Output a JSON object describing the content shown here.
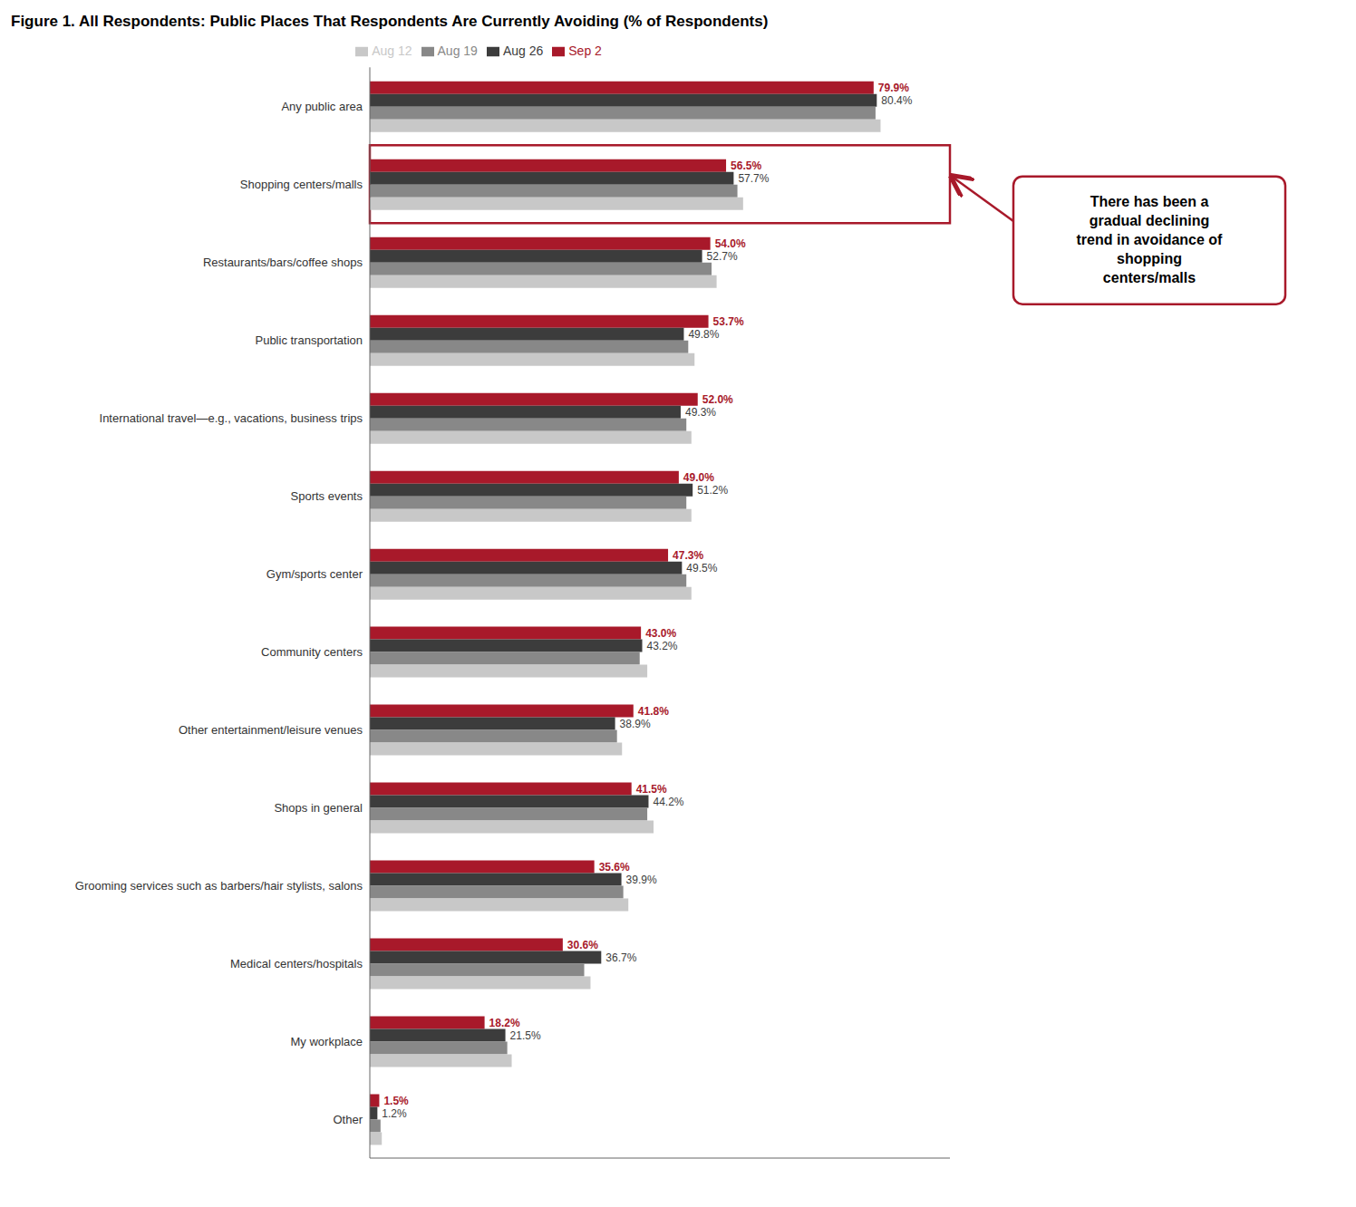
{
  "chart_data": {
    "type": "bar",
    "orientation": "horizontal",
    "title": "Figure 1. All Respondents: Public Places That Respondents Are Currently Avoiding (% of Respondents)",
    "categories": [
      "Any public area",
      "Shopping centers/malls",
      "Restaurants/bars/coffee shops",
      "Public transportation",
      "International travel—e.g., vacations, business trips",
      "Sports events",
      "Gym/sports center",
      "Community centers",
      "Other entertainment/leisure venues",
      "Shops in general",
      "Grooming services such as barbers/hair stylists, salons",
      "Medical centers/hospitals",
      "My workplace",
      "Other"
    ],
    "series": [
      {
        "name": "Sep 2",
        "color": "#A8192A",
        "values": [
          79.9,
          56.5,
          54.0,
          53.7,
          52.0,
          49.0,
          47.3,
          43.0,
          41.8,
          41.5,
          35.6,
          30.6,
          18.2,
          1.5
        ],
        "data_labels": true,
        "value_labels": [
          "79.9%",
          "56.5%",
          "54.0%",
          "53.7%",
          "52.0%",
          "49.0%",
          "47.3%",
          "43.0%",
          "41.8%",
          "41.5%",
          "35.6%",
          "30.6%",
          "18.2%",
          "1.5%"
        ]
      },
      {
        "name": "Aug 26",
        "color": "#3C3C3C",
        "values": [
          80.4,
          57.7,
          52.7,
          49.8,
          49.3,
          51.2,
          49.5,
          43.2,
          38.9,
          44.2,
          39.9,
          36.7,
          21.5,
          1.2
        ],
        "data_labels": true,
        "value_labels": [
          "80.4%",
          "57.7%",
          "52.7%",
          "49.8%",
          "49.3%",
          "51.2%",
          "49.5%",
          "43.2%",
          "38.9%",
          "44.2%",
          "39.9%",
          "36.7%",
          "21.5%",
          "1.2%"
        ]
      },
      {
        "name": "Aug 19",
        "color": "#888888",
        "values": [
          80.2,
          58.3,
          54.2,
          50.5,
          50.2,
          50.2,
          50.2,
          42.8,
          39.2,
          44.0,
          40.2,
          34.0,
          21.8,
          1.7
        ]
      },
      {
        "name": "Aug 12",
        "color": "#C8C8C8",
        "values": [
          81.0,
          59.2,
          55.0,
          51.5,
          51.0,
          51.0,
          51.0,
          44.0,
          40.0,
          45.0,
          41.0,
          35.0,
          22.5,
          1.9
        ]
      }
    ],
    "xlim": [
      0,
      92
    ],
    "tick_labels": "y",
    "grid": false,
    "legend": "top",
    "annotations": [
      {
        "text": "There has been a\ngradual declining\ntrend in avoidance of\nshopping\ncenters/malls",
        "category": "Shopping centers/malls",
        "color": "#A8192A"
      }
    ]
  }
}
